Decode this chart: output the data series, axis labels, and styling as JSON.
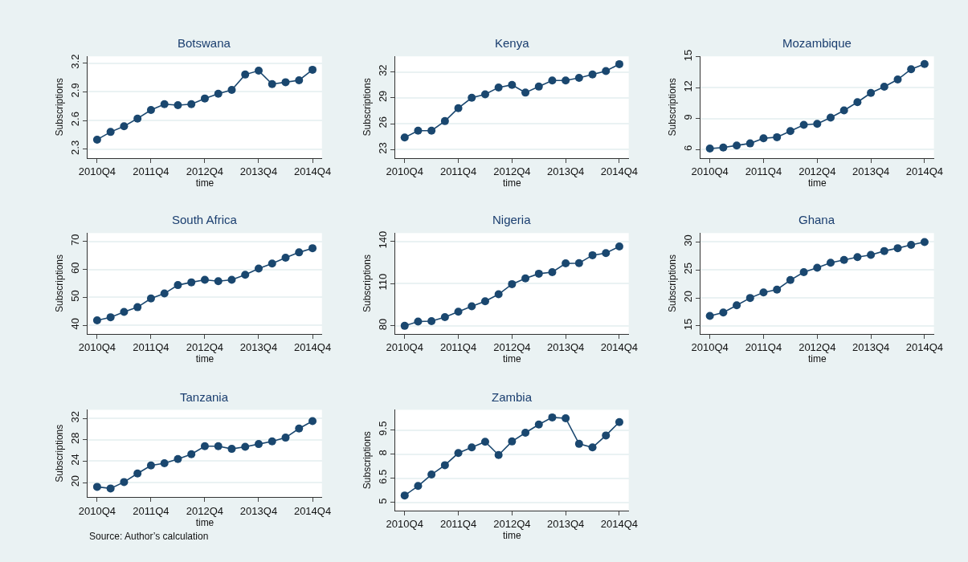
{
  "chart_data": [
    {
      "type": "line",
      "title": "Botswana",
      "xlabel": "time",
      "ylabel": "Subscriptions",
      "color": "#1a476f",
      "marker": "circle",
      "grid": "y",
      "categories": [
        "2010Q4",
        null,
        null,
        null,
        "2011Q4",
        null,
        null,
        null,
        "2012Q4",
        null,
        null,
        null,
        "2013Q4",
        null,
        null,
        null,
        "2014Q4"
      ],
      "ylim": [
        2.21,
        3.27
      ],
      "yticks": [
        2.3,
        2.6,
        2.9,
        3.2
      ],
      "values": [
        2.4,
        2.48,
        2.54,
        2.62,
        2.71,
        2.77,
        2.76,
        2.77,
        2.83,
        2.88,
        2.92,
        3.08,
        3.12,
        2.98,
        3.0,
        3.02,
        3.13
      ]
    },
    {
      "type": "line",
      "title": "Kenya",
      "xlabel": "time",
      "ylabel": "Subscriptions",
      "color": "#1a476f",
      "marker": "circle",
      "grid": "y",
      "categories": [
        "2010Q4",
        null,
        null,
        null,
        "2011Q4",
        null,
        null,
        null,
        "2012Q4",
        null,
        null,
        null,
        "2013Q4",
        null,
        null,
        null,
        "2014Q4"
      ],
      "ylim": [
        22.05,
        33.8
      ],
      "yticks": [
        23,
        26,
        29,
        32
      ],
      "values": [
        24.4,
        25.2,
        25.2,
        26.3,
        27.8,
        29.0,
        29.4,
        30.2,
        30.5,
        29.6,
        30.3,
        31.0,
        31.0,
        31.3,
        31.7,
        32.1,
        32.9
      ]
    },
    {
      "type": "line",
      "title": "Mozambique",
      "xlabel": "time",
      "ylabel": "Subscriptions",
      "color": "#1a476f",
      "marker": "circle",
      "grid": "y",
      "categories": [
        "2010Q4",
        null,
        null,
        null,
        "2011Q4",
        null,
        null,
        null,
        "2012Q4",
        null,
        null,
        null,
        "2013Q4",
        null,
        null,
        null,
        "2014Q4"
      ],
      "ylim": [
        5.2,
        15.05
      ],
      "yticks": [
        6,
        9,
        12,
        15
      ],
      "values": [
        6.1,
        6.2,
        6.4,
        6.6,
        7.1,
        7.2,
        7.8,
        8.4,
        8.5,
        9.1,
        9.8,
        10.6,
        11.5,
        12.1,
        12.8,
        13.8,
        14.3
      ]
    },
    {
      "type": "line",
      "title": "South Africa",
      "xlabel": "time",
      "ylabel": "Subscriptions",
      "color": "#1a476f",
      "marker": "circle",
      "grid": "y",
      "categories": [
        "2010Q4",
        null,
        null,
        null,
        "2011Q4",
        null,
        null,
        null,
        "2012Q4",
        null,
        null,
        null,
        "2013Q4",
        null,
        null,
        null,
        "2014Q4"
      ],
      "ylim": [
        37,
        73
      ],
      "yticks": [
        40,
        50,
        60,
        70
      ],
      "values": [
        41.8,
        42.9,
        44.8,
        46.5,
        49.6,
        51.4,
        54.4,
        55.4,
        56.3,
        55.8,
        56.3,
        58.1,
        60.3,
        62.1,
        64.2,
        66.1,
        67.6
      ]
    },
    {
      "type": "line",
      "title": "Nigeria",
      "xlabel": "time",
      "ylabel": "Subscriptions",
      "color": "#1a476f",
      "marker": "circle",
      "grid": "y",
      "categories": [
        "2010Q4",
        null,
        null,
        null,
        "2011Q4",
        null,
        null,
        null,
        "2012Q4",
        null,
        null,
        null,
        "2013Q4",
        null,
        null,
        null,
        "2014Q4"
      ],
      "ylim": [
        74.4,
        145.8
      ],
      "yticks": [
        80,
        110,
        140
      ],
      "values": [
        80,
        83.1,
        83.3,
        86.2,
        90,
        93.9,
        97.4,
        102.4,
        109.6,
        113.7,
        117,
        118.1,
        124.3,
        124.5,
        130.1,
        131.6,
        136.3
      ]
    },
    {
      "type": "line",
      "title": "Ghana",
      "xlabel": "time",
      "ylabel": "Subscriptions",
      "color": "#1a476f",
      "marker": "circle",
      "grid": "y",
      "categories": [
        "2010Q4",
        null,
        null,
        null,
        "2011Q4",
        null,
        null,
        null,
        "2012Q4",
        null,
        null,
        null,
        "2013Q4",
        null,
        null,
        null,
        "2014Q4"
      ],
      "ylim": [
        13.6,
        31.6
      ],
      "yticks": [
        15,
        20,
        25,
        30
      ],
      "values": [
        16.8,
        17.4,
        18.7,
        20.0,
        21.0,
        21.5,
        23.2,
        24.6,
        25.4,
        26.3,
        26.8,
        27.3,
        27.7,
        28.4,
        28.9,
        29.5,
        30.0
      ]
    },
    {
      "type": "line",
      "title": "Tanzania",
      "xlabel": "time",
      "ylabel": "Subscriptions",
      "color": "#1a476f",
      "marker": "circle",
      "grid": "y",
      "annotations": [
        "Source: Author’s calculation"
      ],
      "categories": [
        "2010Q4",
        null,
        null,
        null,
        "2011Q4",
        null,
        null,
        null,
        "2012Q4",
        null,
        null,
        null,
        "2013Q4",
        null,
        null,
        null,
        "2014Q4"
      ],
      "ylim": [
        17.3,
        33.6
      ],
      "yticks": [
        20,
        24,
        28,
        32
      ],
      "values": [
        19.2,
        18.9,
        20.1,
        21.7,
        23.2,
        23.6,
        24.4,
        25.3,
        26.8,
        26.8,
        26.3,
        26.7,
        27.2,
        27.7,
        28.4,
        30.1,
        31.5
      ]
    },
    {
      "type": "line",
      "title": "Zambia",
      "xlabel": "time",
      "ylabel": "Subscriptions",
      "color": "#1a476f",
      "marker": "circle",
      "grid": "y",
      "categories": [
        "2010Q4",
        null,
        null,
        null,
        "2011Q4",
        null,
        null,
        null,
        "2012Q4",
        null,
        null,
        null,
        "2013Q4",
        null,
        null,
        null,
        "2014Q4"
      ],
      "ylim": [
        4.51,
        10.75
      ],
      "yticks": [
        5,
        6.5,
        8,
        9.5
      ],
      "values": [
        5.44,
        6.03,
        6.74,
        7.32,
        8.07,
        8.42,
        8.77,
        7.95,
        8.79,
        9.33,
        9.84,
        10.28,
        10.23,
        8.64,
        8.42,
        9.16,
        9.99
      ]
    }
  ]
}
